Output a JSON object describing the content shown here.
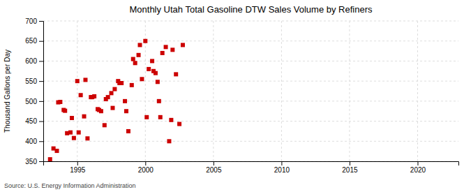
{
  "chart_data": {
    "type": "scatter",
    "title": "Monthly Utah Total Gasoline DTW Sales Volume by Refiners",
    "ylabel": "Thousand Gallons per Day",
    "annotations": [
      "Source: U.S. Energy Information Administration"
    ],
    "color": "#cc0000",
    "marker": "square",
    "grid": true,
    "xlim": [
      1992.5,
      2023
    ],
    "ylim": [
      350,
      700
    ],
    "xticks": [
      1995,
      2000,
      2005,
      2010,
      2015,
      2020
    ],
    "yticks": [
      350,
      400,
      450,
      500,
      550,
      600,
      650,
      700
    ],
    "x": [
      1993.0,
      1993.25,
      1993.5,
      1993.75,
      1994.0,
      1994.25,
      1994.5,
      1994.75,
      1995.0,
      1995.25,
      1995.5,
      1995.75,
      1996.0,
      1996.25,
      1996.5,
      1996.75,
      1997.0,
      1997.25,
      1997.5,
      1997.75,
      1998.0,
      1998.25,
      1998.5,
      1998.75,
      1999.0,
      1999.25,
      1999.5,
      1999.75,
      2000.0,
      2000.1,
      2000.25,
      2000.5,
      2000.6,
      2000.75,
      2001.0,
      2001.1,
      2001.25,
      2001.5,
      2001.75,
      2002.0,
      2002.25,
      2002.5,
      2002.75,
      1993.6,
      1994.1,
      1994.6,
      1995.1,
      1995.6,
      1996.1,
      1996.6,
      1997.1,
      1997.6,
      1998.1,
      1998.6,
      1999.1,
      1999.6,
      2000.9,
      2001.9
    ],
    "values": [
      355,
      382,
      376,
      498,
      478,
      420,
      422,
      408,
      550,
      515,
      462,
      407,
      510,
      512,
      480,
      475,
      440,
      510,
      520,
      530,
      550,
      545,
      500,
      425,
      540,
      595,
      615,
      555,
      650,
      460,
      580,
      600,
      575,
      570,
      500,
      460,
      620,
      635,
      400,
      628,
      567,
      443,
      640,
      497,
      476,
      458,
      422,
      553,
      510,
      478,
      505,
      483,
      545,
      475,
      605,
      640,
      548,
      453
    ]
  }
}
